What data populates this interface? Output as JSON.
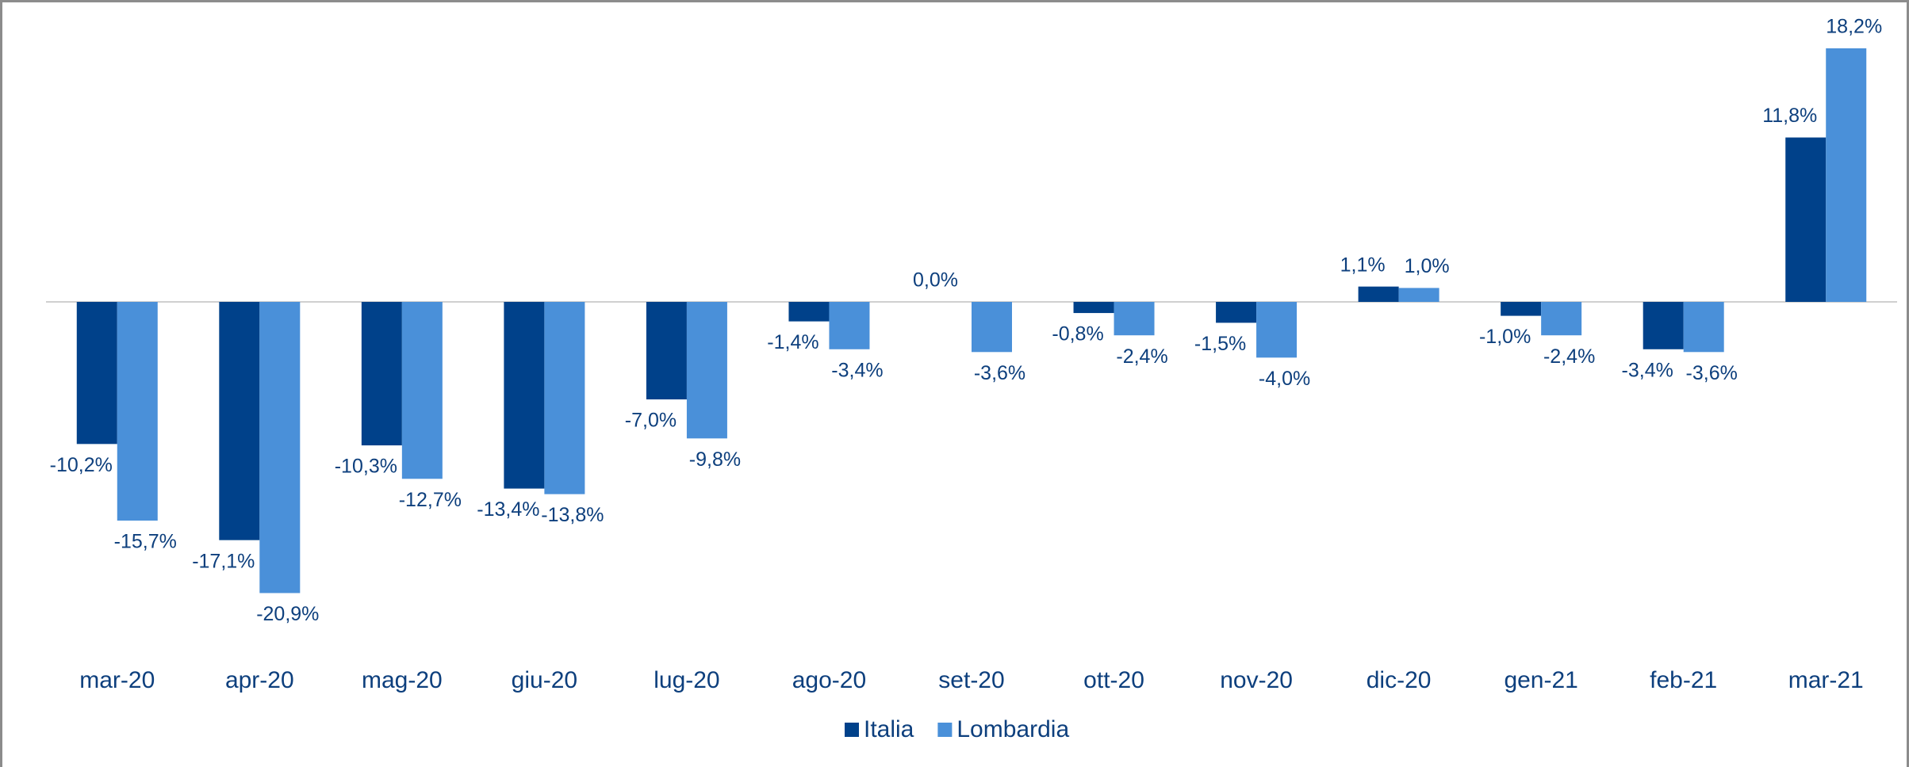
{
  "chart_data": {
    "type": "bar",
    "categories": [
      "mar-20",
      "apr-20",
      "mag-20",
      "giu-20",
      "lug-20",
      "ago-20",
      "set-20",
      "ott-20",
      "nov-20",
      "dic-20",
      "gen-21",
      "feb-21",
      "mar-21"
    ],
    "series": [
      {
        "name": "Italia",
        "color": "#00418a",
        "values": [
          -10.2,
          -17.1,
          -10.3,
          -13.4,
          -7.0,
          -1.4,
          0.0,
          -0.8,
          -1.5,
          1.1,
          -1.0,
          -3.4,
          11.8
        ],
        "value_labels": [
          "-10,2%",
          "-17,1%",
          "-10,3%",
          "-13,4%",
          "-7,0%",
          "-1,4%",
          "0,0%",
          "-0,8%",
          "-1,5%",
          "1,1%",
          "-1,0%",
          "-3,4%",
          "11,8%"
        ]
      },
      {
        "name": "Lombardia",
        "color": "#4a90d9",
        "values": [
          -15.7,
          -20.9,
          -12.7,
          -13.8,
          -9.8,
          -3.4,
          -3.6,
          -2.4,
          -4.0,
          1.0,
          -2.4,
          -3.6,
          18.2
        ],
        "value_labels": [
          "-15,7%",
          "-20,9%",
          "-12,7%",
          "-13,8%",
          "-9,8%",
          "-3,4%",
          "-3,6%",
          "-2,4%",
          "-4,0%",
          "1,0%",
          "-2,4%",
          "-3,6%",
          "18,2%"
        ]
      }
    ],
    "legend": "bottom"
  }
}
